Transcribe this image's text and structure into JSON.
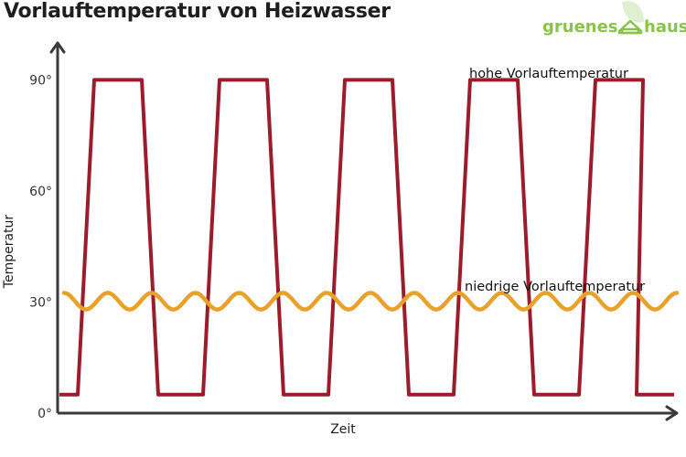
{
  "title": "Vorlauftemperatur von Heizwasser",
  "logo": {
    "word1": "gruenes",
    "word2": "haus",
    "icon": "leaf-house-icon",
    "color": "#8bc34a"
  },
  "chart_data": {
    "type": "line",
    "title": "Vorlauftemperatur von Heizwasser",
    "xlabel": "Zeit",
    "ylabel": "Temperatur",
    "ylim": [
      0,
      98
    ],
    "yticks": [
      {
        "value": 0,
        "label": "0°"
      },
      {
        "value": 30,
        "label": "30°"
      },
      {
        "value": 60,
        "label": "60°"
      },
      {
        "value": 90,
        "label": "90°"
      }
    ],
    "grid": false,
    "series": [
      {
        "name": "hohe Vorlauftemperatur",
        "color": "#9b1c2a",
        "shape": "pulses",
        "high": 90,
        "low": 5,
        "pulses": 5
      },
      {
        "name": "niedrige Vorlauftemperatur",
        "color": "#e8a12a",
        "shape": "wave",
        "mean": 29,
        "amplitude": 1.5,
        "periods": 14
      }
    ]
  }
}
